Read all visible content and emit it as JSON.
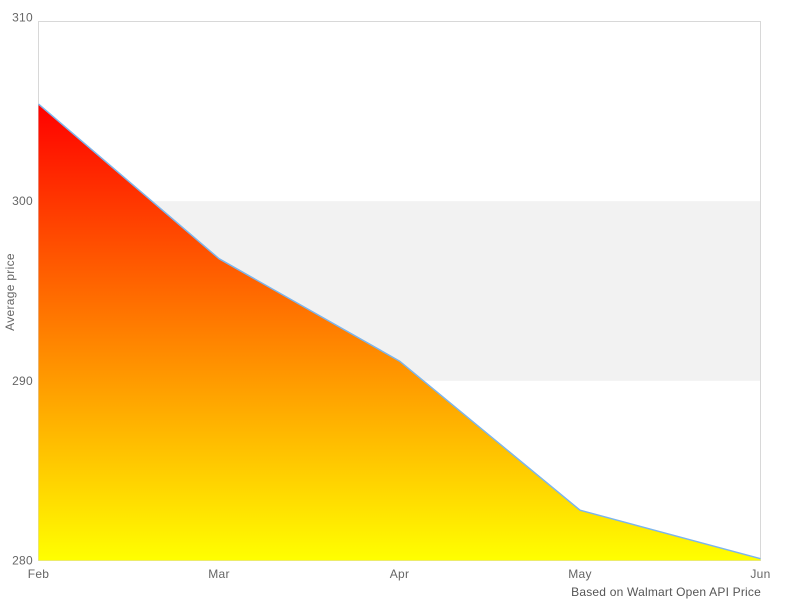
{
  "chart_data": {
    "type": "area",
    "title": "",
    "categories": [
      "Feb",
      "Mar",
      "Apr",
      "May",
      "Jun"
    ],
    "series": [
      {
        "name": "Average price",
        "values": [
          305.4,
          296.8,
          291.1,
          282.8,
          280.1
        ]
      }
    ],
    "xlabel": "",
    "ylabel": "Average price",
    "ylim": [
      280,
      310
    ],
    "yticks": [
      280,
      290,
      300,
      310
    ],
    "plot_band": {
      "from": 290,
      "to": 300,
      "color": "#f2f2f2"
    },
    "grid": false,
    "legend_position": "none",
    "caption": "Based on Walmart Open API Price",
    "colors": {
      "line": "#7cb5ec",
      "area_gradient_top": "#ff0000",
      "area_gradient_bottom": "#ffff00",
      "plot_border": "#d8d8d8",
      "label": "#666666",
      "caption": "#555555",
      "background": "#ffffff"
    }
  }
}
